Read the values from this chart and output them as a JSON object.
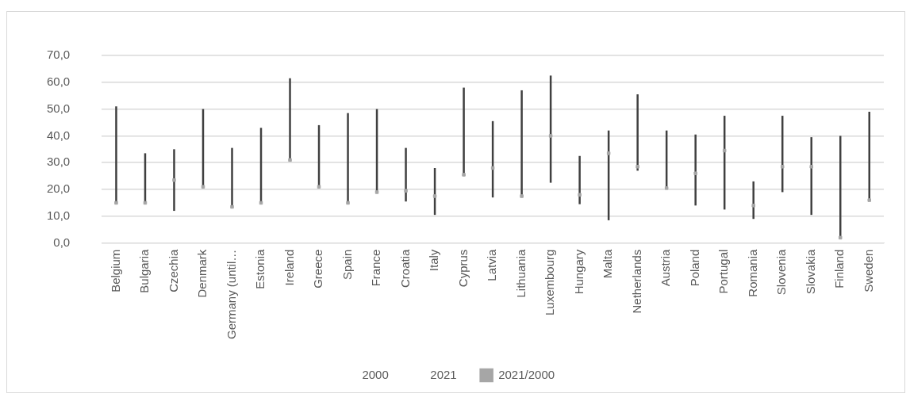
{
  "chart_data": {
    "type": "scatter",
    "categories": [
      "Belgium",
      "Bulgaria",
      "Czechia",
      "Denmark",
      "Germany (until…",
      "Estonia",
      "Ireland",
      "Greece",
      "Spain",
      "France",
      "Croatia",
      "Italy",
      "Cyprus",
      "Latvia",
      "Lithuania",
      "Luxembourg",
      "Hungary",
      "Malta",
      "Netherlands",
      "Austria",
      "Poland",
      "Portugal",
      "Romania",
      "Slovenia",
      "Slovakia",
      "Finland",
      "Sweden"
    ],
    "series": [
      {
        "name": "2000",
        "values": [
          null,
          null,
          null,
          null,
          null,
          null,
          null,
          null,
          null,
          null,
          null,
          null,
          null,
          null,
          null,
          null,
          null,
          null,
          null,
          null,
          null,
          null,
          null,
          null,
          null,
          null,
          null
        ]
      },
      {
        "name": "2021",
        "values": [
          null,
          null,
          null,
          null,
          null,
          null,
          null,
          null,
          null,
          null,
          null,
          null,
          null,
          null,
          null,
          null,
          null,
          null,
          null,
          null,
          null,
          null,
          null,
          null,
          null,
          null,
          null
        ]
      },
      {
        "name": "2021/2000",
        "color": "#a6a6a6",
        "marker": "square",
        "values": [
          15,
          15,
          23.5,
          21,
          13.5,
          15,
          31,
          21,
          15,
          19,
          19.5,
          17.5,
          25.5,
          28,
          17.5,
          40,
          18,
          33.5,
          28.5,
          20.5,
          26,
          34.5,
          14,
          28.5,
          28.5,
          2,
          16
        ],
        "errors": [
          [
            15,
            51
          ],
          [
            15,
            33.5
          ],
          [
            12,
            35
          ],
          [
            21,
            50
          ],
          [
            13.5,
            35.5
          ],
          [
            15,
            43
          ],
          [
            31,
            61.5
          ],
          [
            21,
            44
          ],
          [
            15,
            48.5
          ],
          [
            19,
            50
          ],
          [
            15.5,
            35.5
          ],
          [
            10.5,
            28
          ],
          [
            25.5,
            58
          ],
          [
            17,
            45.5
          ],
          [
            17.5,
            57
          ],
          [
            22.5,
            62.5
          ],
          [
            14.5,
            32.5
          ],
          [
            8.5,
            42
          ],
          [
            27,
            55.5
          ],
          [
            20.5,
            42
          ],
          [
            14,
            40.5
          ],
          [
            12.5,
            47.5
          ],
          [
            9,
            23
          ],
          [
            19,
            47.5
          ],
          [
            10.5,
            39.5
          ],
          [
            2,
            40
          ],
          [
            16,
            49
          ]
        ]
      }
    ],
    "ylim": [
      0,
      70
    ],
    "yticks": [
      {
        "value": 0,
        "label": "0,0"
      },
      {
        "value": 10,
        "label": "10,0"
      },
      {
        "value": 20,
        "label": "20,0"
      },
      {
        "value": 30,
        "label": "30,0"
      },
      {
        "value": 40,
        "label": "40,0"
      },
      {
        "value": 50,
        "label": "50,0"
      },
      {
        "value": 60,
        "label": "60,0"
      },
      {
        "value": 70,
        "label": "70,0"
      }
    ],
    "grid": "y",
    "legend": "bottom"
  }
}
